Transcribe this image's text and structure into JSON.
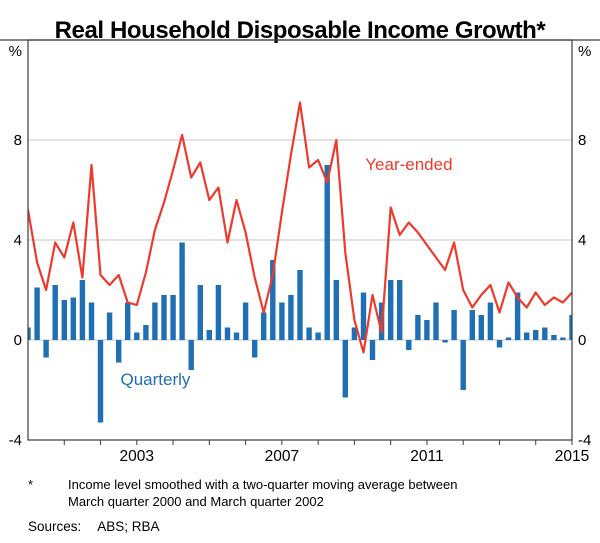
{
  "title": "Real Household Disposable Income Growth*",
  "footnote": {
    "marker": "*",
    "text": "Income level smoothed with a two-quarter moving average between March quarter 2000 and March quarter 2002"
  },
  "sources": {
    "label": "Sources:",
    "text": "ABS; RBA"
  },
  "colors": {
    "grid": "#c6c6c6",
    "frame": "#3c3c3c",
    "text": "#000000",
    "line_red": "#ed3a2d",
    "bar_blue": "#1f6fb5"
  },
  "chart_data": {
    "type": "bar+line",
    "title": "Real Household Disposable Income Growth",
    "unit": "%",
    "x_start": 2000.0,
    "x_step": 0.25,
    "x_end": 2015.0,
    "ylim": [
      -4,
      12
    ],
    "yticks": [
      -4,
      0,
      4,
      8
    ],
    "xticks": [
      2003,
      2007,
      2011,
      2015
    ],
    "grid": "horizontal",
    "legend_position": "inline-annotations",
    "series": [
      {
        "name": "Year-ended",
        "type": "line",
        "color": "#ed3a2d",
        "values": [
          5.2,
          3.1,
          2.0,
          3.9,
          3.3,
          4.7,
          2.5,
          7.0,
          2.6,
          2.2,
          2.6,
          1.5,
          1.4,
          2.7,
          4.4,
          5.5,
          6.8,
          8.2,
          6.5,
          7.1,
          5.6,
          6.1,
          3.9,
          5.6,
          4.3,
          2.5,
          1.1,
          2.6,
          5.1,
          7.4,
          9.5,
          6.9,
          7.2,
          6.3,
          8.0,
          3.5,
          0.8,
          -0.5,
          1.8,
          0.3,
          5.3,
          4.2,
          4.7,
          4.3,
          3.8,
          3.3,
          2.8,
          3.9,
          2.0,
          1.3,
          1.8,
          2.2,
          1.1,
          2.3,
          1.7,
          1.3,
          1.9,
          1.4,
          1.7,
          1.5,
          1.9
        ]
      },
      {
        "name": "Quarterly",
        "type": "bar",
        "color": "#1f6fb5",
        "values": [
          0.5,
          2.1,
          -0.7,
          2.2,
          1.6,
          1.7,
          2.4,
          1.5,
          -3.3,
          1.1,
          -0.9,
          1.5,
          0.3,
          0.6,
          1.5,
          1.8,
          1.8,
          3.9,
          -1.2,
          2.2,
          0.4,
          2.2,
          0.5,
          0.3,
          1.5,
          -0.7,
          1.1,
          3.2,
          1.5,
          1.8,
          2.8,
          0.5,
          0.3,
          7.0,
          2.4,
          -2.3,
          0.5,
          1.9,
          -0.8,
          1.5,
          2.4,
          2.4,
          -0.4,
          1.0,
          0.8,
          1.5,
          -0.1,
          1.2,
          -2.0,
          1.2,
          1.0,
          1.5,
          -0.3,
          0.1,
          1.9,
          0.3,
          0.4,
          0.5,
          0.2,
          0.1,
          1.0
        ]
      }
    ],
    "annotations": [
      {
        "text": "Year-ended",
        "x": 2009.3,
        "y": 6.8
      },
      {
        "text": "Quarterly",
        "x": 2002.55,
        "y": -1.8
      }
    ]
  }
}
